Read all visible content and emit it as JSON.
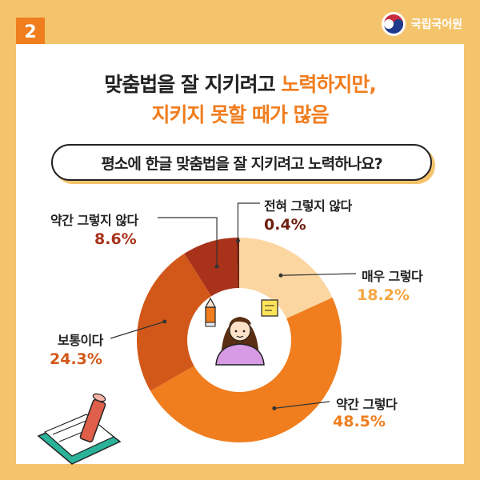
{
  "badge": "2",
  "org": {
    "name": "국립국어원",
    "logo": "taegeuk-emblem"
  },
  "headline": {
    "line1_plain": "맞춤법을 잘 지키려고 ",
    "line1_accent": "노력하지만,",
    "line2_plain": "",
    "line2_accent": "지키지 못할 때가 많음"
  },
  "question": "평소에 한글 맞춤법을 잘 지키려고 노력하나요?",
  "chart_data": {
    "type": "pie",
    "variant": "donut",
    "slices": [
      {
        "label": "매우 그렇다",
        "value": 18.2,
        "display": "18.2%",
        "color": "#fbd6a0"
      },
      {
        "label": "약간 그렇다",
        "value": 48.5,
        "display": "48.5%",
        "color": "#f07d1e"
      },
      {
        "label": "보통이다",
        "value": 24.3,
        "display": "24.3%",
        "color": "#d2581a"
      },
      {
        "label": "약간 그렇지 않다",
        "value": 8.6,
        "display": "8.6%",
        "color": "#a8321a"
      },
      {
        "label": "전혀 그렇지 않다",
        "value": 0.4,
        "display": "0.4%",
        "color": "#6e1f10"
      }
    ]
  },
  "icons": [
    "pencil-icon",
    "sticky-note-icon",
    "girl-avatar-icon",
    "book-pencil-illustration"
  ]
}
